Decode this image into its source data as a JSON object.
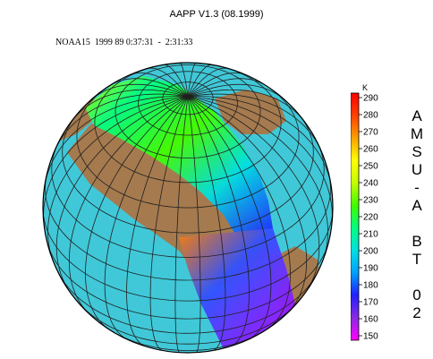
{
  "header": {
    "title": "AAPP V1.3 (08.1999)",
    "subtitle": "NOAA15  1999 89 0:37:31  -  2:31:33"
  },
  "colorbar": {
    "units": "K",
    "ticks": [
      "290",
      "280",
      "270",
      "260",
      "250",
      "240",
      "230",
      "220",
      "210",
      "200",
      "190",
      "180",
      "170",
      "160",
      "150"
    ],
    "min": 150,
    "max": 290,
    "colors": [
      "#ff00ff",
      "#8a2be2",
      "#2020ff",
      "#00a0ff",
      "#00e0e0",
      "#00ff80",
      "#40ff00",
      "#c0ff00",
      "#ffff00",
      "#ffa000",
      "#ff4000",
      "#ff0000"
    ],
    "label_lines": [
      "A",
      "M",
      "S",
      "U",
      "-",
      "A",
      "",
      "B",
      "T",
      "",
      "0",
      "2"
    ]
  },
  "map": {
    "ocean_color": "#40c8d8",
    "land_color": "#a57a4e",
    "grid_color": "#202020"
  }
}
